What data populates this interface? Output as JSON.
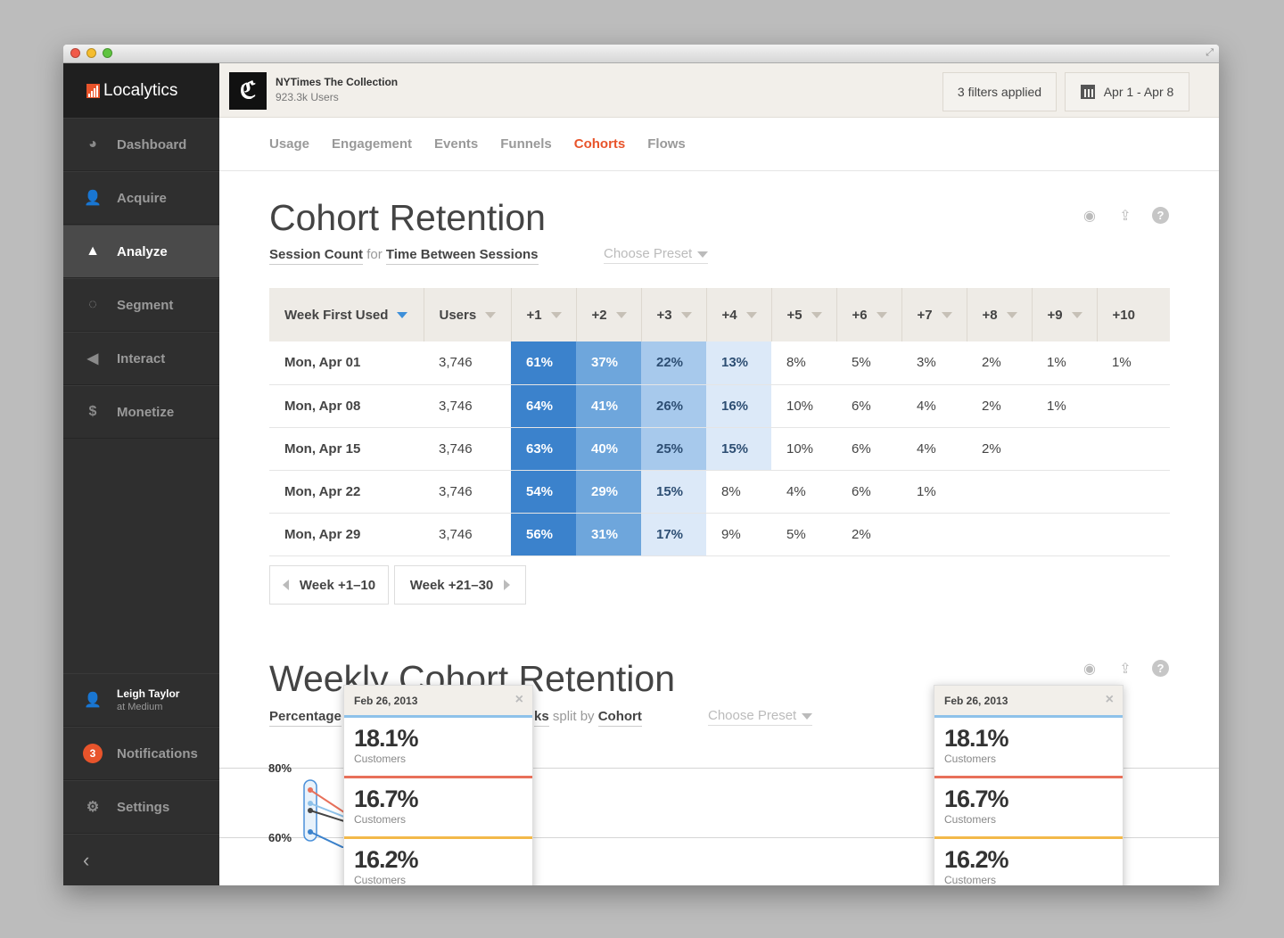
{
  "sidebar": {
    "logo": "Localytics",
    "items": [
      {
        "label": "Dashboard",
        "icon": "dashboard-icon"
      },
      {
        "label": "Acquire",
        "icon": "acquire-icon"
      },
      {
        "label": "Analyze",
        "icon": "analyze-icon"
      },
      {
        "label": "Segment",
        "icon": "segment-icon"
      },
      {
        "label": "Interact",
        "icon": "megaphone-icon"
      },
      {
        "label": "Monetize",
        "icon": "dollar-icon"
      }
    ],
    "user": {
      "name": "Leigh Taylor",
      "org": "at Medium"
    },
    "notifications": {
      "label": "Notifications",
      "count": "3"
    },
    "settings": "Settings",
    "collapse": "‹"
  },
  "topbar": {
    "app_name": "NYTimes The Collection",
    "users": "923.3k Users",
    "filters": "3 filters applied",
    "date_range": "Apr 1 - Apr 8"
  },
  "tabs": [
    "Usage",
    "Engagement",
    "Events",
    "Funnels",
    "Cohorts",
    "Flows"
  ],
  "cohort": {
    "title": "Cohort Retention",
    "metric": "Session Count",
    "for": "for",
    "dimension": "Time Between Sessions",
    "preset": "Choose Preset",
    "headers": [
      "Week First Used",
      "Users",
      "+1",
      "+2",
      "+3",
      "+4",
      "+5",
      "+6",
      "+7",
      "+8",
      "+9",
      "+10"
    ],
    "rows": [
      {
        "week": "Mon, Apr 01",
        "users": "3,746",
        "values": [
          "61%",
          "37%",
          "22%",
          "13%",
          "8%",
          "5%",
          "3%",
          "2%",
          "1%",
          "1%"
        ]
      },
      {
        "week": "Mon, Apr 08",
        "users": "3,746",
        "values": [
          "64%",
          "41%",
          "26%",
          "16%",
          "10%",
          "6%",
          "4%",
          "2%",
          "1%",
          ""
        ]
      },
      {
        "week": "Mon, Apr 15",
        "users": "3,746",
        "values": [
          "63%",
          "40%",
          "25%",
          "15%",
          "10%",
          "6%",
          "4%",
          "2%",
          "",
          ""
        ]
      },
      {
        "week": "Mon, Apr 22",
        "users": "3,746",
        "values": [
          "54%",
          "29%",
          "15%",
          "8%",
          "4%",
          "6%",
          "1%",
          "",
          "",
          ""
        ]
      },
      {
        "week": "Mon, Apr 29",
        "users": "3,746",
        "values": [
          "56%",
          "31%",
          "17%",
          "9%",
          "5%",
          "2%",
          "",
          "",
          "",
          ""
        ]
      }
    ],
    "prev_page": "Week +1–10",
    "next_page": "Week +21–30"
  },
  "weekly": {
    "title": "Weekly Cohort Retention",
    "metric": "Percentage",
    "metric_tail": "ks",
    "split_by": "split by",
    "split": "Cohort",
    "preset": "Choose Preset",
    "y_labels": [
      "80%",
      "60%"
    ]
  },
  "tooltips": [
    {
      "date": "Feb 26, 2013",
      "close": "×",
      "rows": [
        {
          "value": "18.1%",
          "label": "Customers",
          "color": "#8ec2ea"
        },
        {
          "value": "16.7%",
          "label": "Customers",
          "color": "#e8705a"
        },
        {
          "value": "16.2%",
          "label": "Customers",
          "color": "#f3b94a"
        }
      ]
    },
    {
      "date": "Feb 26, 2013",
      "close": "×",
      "rows": [
        {
          "value": "18.1%",
          "label": "Customers",
          "color": "#8ec2ea"
        },
        {
          "value": "16.7%",
          "label": "Customers",
          "color": "#e8705a"
        },
        {
          "value": "16.2%",
          "label": "Customers",
          "color": "#f3b94a"
        }
      ]
    }
  ],
  "colors": {
    "accent": "#e8542b",
    "heat1": "#3b82cc",
    "heat2": "#6ea6dc",
    "heat3": "#a7c9ec",
    "heat4": "#dce9f8"
  }
}
